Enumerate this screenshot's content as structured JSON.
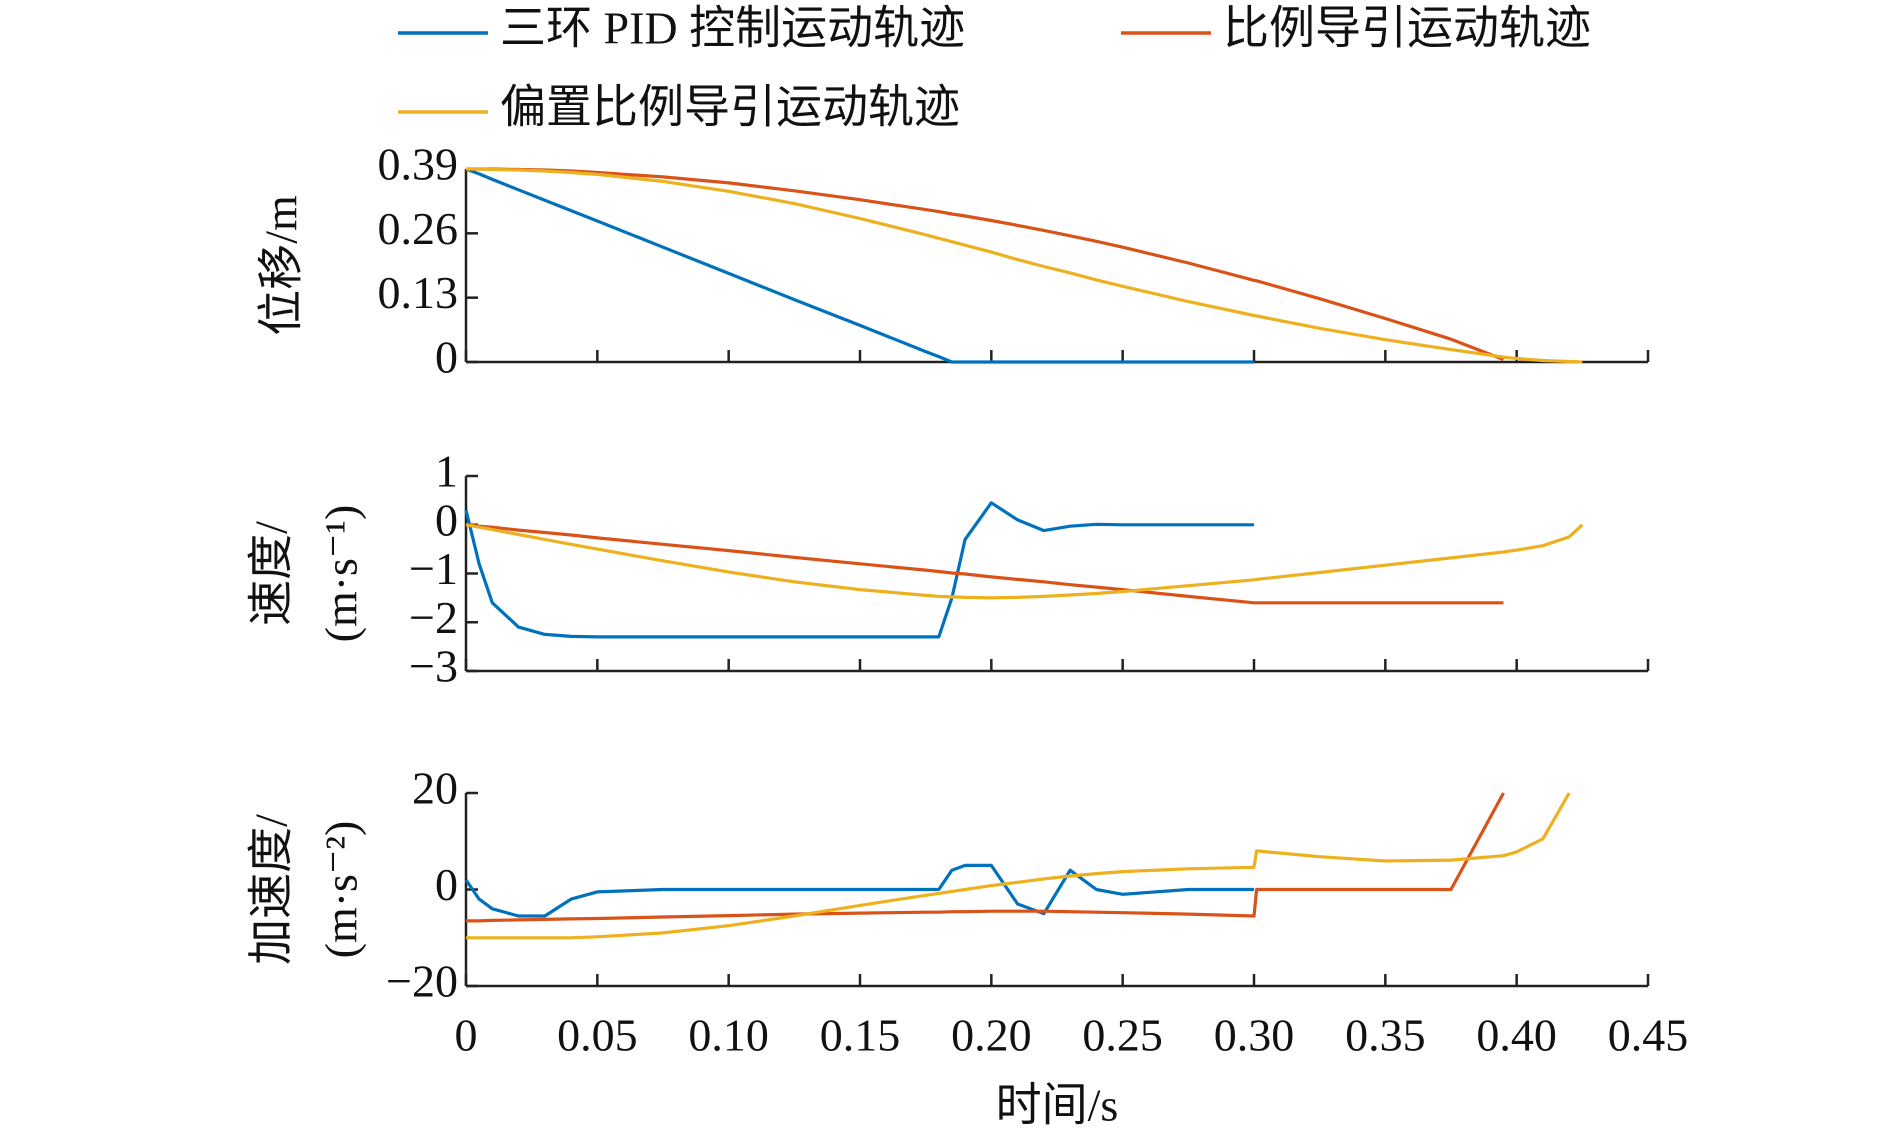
{
  "chart_data": [
    {
      "type": "line",
      "ylabel": "位移/m",
      "x": [
        0,
        0.005,
        0.01,
        0.02,
        0.03,
        0.04,
        0.05,
        0.075,
        0.1,
        0.125,
        0.15,
        0.175,
        0.18,
        0.185,
        0.19,
        0.2,
        0.21,
        0.22,
        0.23,
        0.24,
        0.25,
        0.275,
        0.3,
        0.301,
        0.325,
        0.35,
        0.375,
        0.395,
        0.4,
        0.41,
        0.42,
        0.425
      ],
      "xlim": [
        0,
        0.45
      ],
      "xticks": [
        0,
        0.05,
        0.1,
        0.15,
        0.2,
        0.25,
        0.3,
        0.35,
        0.4,
        0.45
      ],
      "ylim": [
        0,
        0.39
      ],
      "yticks": [
        0,
        0.13,
        0.26,
        0.39
      ],
      "series": [
        {
          "name": "三环 PID 控制运动轨迹",
          "color": "#0072bd",
          "values": [
            0.39,
            0.38,
            0.369,
            0.348,
            0.327,
            0.306,
            0.285,
            0.232,
            0.179,
            0.126,
            0.074,
            0.021,
            0.011,
            0,
            0,
            0,
            0,
            0,
            0,
            0,
            0,
            0,
            0,
            null,
            null,
            null,
            null,
            null,
            null,
            null,
            null,
            null
          ]
        },
        {
          "name": "比例导引运动轨迹",
          "color": "#d95319",
          "values": [
            0.39,
            0.39,
            0.39,
            0.389,
            0.388,
            0.386,
            0.383,
            0.374,
            0.362,
            0.346,
            0.328,
            0.308,
            0.304,
            0.299,
            0.295,
            0.286,
            0.276,
            0.266,
            0.255,
            0.244,
            0.232,
            0.2,
            0.165,
            0.164,
            0.128,
            0.088,
            0.046,
            0.005,
            null,
            null,
            null,
            null
          ]
        },
        {
          "name": "偏置比例导引运动轨迹",
          "color": "#edb120",
          "values": [
            0.39,
            0.39,
            0.389,
            0.388,
            0.386,
            0.383,
            0.379,
            0.365,
            0.345,
            0.32,
            0.29,
            0.257,
            0.25,
            0.243,
            0.236,
            0.222,
            0.207,
            0.193,
            0.18,
            0.166,
            0.153,
            0.122,
            0.094,
            0.093,
            0.068,
            0.045,
            0.025,
            0.01,
            0.007,
            0.003,
            0.001,
            0
          ]
        }
      ]
    },
    {
      "type": "line",
      "ylabel": [
        "速度/",
        "(m·s⁻¹)"
      ],
      "x": [
        0,
        0.005,
        0.01,
        0.02,
        0.03,
        0.04,
        0.05,
        0.075,
        0.1,
        0.125,
        0.15,
        0.175,
        0.18,
        0.185,
        0.19,
        0.2,
        0.21,
        0.22,
        0.23,
        0.24,
        0.25,
        0.275,
        0.3,
        0.301,
        0.325,
        0.35,
        0.375,
        0.395,
        0.4,
        0.41,
        0.42,
        0.425
      ],
      "xlim": [
        0,
        0.45
      ],
      "xticks": [
        0,
        0.05,
        0.1,
        0.15,
        0.2,
        0.25,
        0.3,
        0.35,
        0.4,
        0.45
      ],
      "ylim": [
        -3,
        1
      ],
      "yticks": [
        {
          "value": -3,
          "label": "−3"
        },
        {
          "value": -2,
          "label": "−2"
        },
        {
          "value": -1,
          "label": "−1"
        },
        0,
        1
      ],
      "series": [
        {
          "color": "#0072bd",
          "values": [
            0.3,
            -0.8,
            -1.6,
            -2.1,
            -2.25,
            -2.29,
            -2.3,
            -2.3,
            -2.3,
            -2.3,
            -2.3,
            -2.3,
            -2.3,
            -1.5,
            -0.3,
            0.45,
            0.1,
            -0.12,
            -0.03,
            0.01,
            0,
            0,
            0,
            null,
            null,
            null,
            null,
            null,
            null,
            null,
            null,
            null
          ]
        },
        {
          "color": "#d95319",
          "values": [
            0,
            -0.03,
            -0.05,
            -0.11,
            -0.16,
            -0.21,
            -0.27,
            -0.4,
            -0.53,
            -0.67,
            -0.8,
            -0.93,
            -0.96,
            -0.99,
            -1.01,
            -1.07,
            -1.12,
            -1.17,
            -1.23,
            -1.28,
            -1.33,
            -1.47,
            -1.6,
            -1.6,
            -1.6,
            -1.6,
            -1.6,
            -1.6,
            null,
            null,
            null,
            null
          ]
        },
        {
          "color": "#edb120",
          "values": [
            0,
            -0.05,
            -0.1,
            -0.2,
            -0.3,
            -0.4,
            -0.5,
            -0.74,
            -0.97,
            -1.17,
            -1.33,
            -1.45,
            -1.47,
            -1.48,
            -1.49,
            -1.5,
            -1.49,
            -1.47,
            -1.44,
            -1.41,
            -1.37,
            -1.25,
            -1.13,
            -1.12,
            -0.98,
            -0.83,
            -0.68,
            -0.56,
            -0.52,
            -0.43,
            -0.25,
            0
          ]
        }
      ]
    },
    {
      "type": "line",
      "ylabel": [
        "加速度/",
        "(m·s⁻²)"
      ],
      "xlabel": "时间/s",
      "x": [
        0,
        0.005,
        0.01,
        0.02,
        0.03,
        0.04,
        0.05,
        0.075,
        0.1,
        0.125,
        0.15,
        0.175,
        0.18,
        0.185,
        0.19,
        0.2,
        0.21,
        0.22,
        0.23,
        0.24,
        0.25,
        0.275,
        0.3,
        0.301,
        0.325,
        0.35,
        0.375,
        0.395,
        0.4,
        0.41,
        0.42,
        0.425
      ],
      "xlim": [
        0,
        0.45
      ],
      "xticks": [
        0,
        0.05,
        {
          "value": 0.1,
          "label": "0.10"
        },
        0.15,
        {
          "value": 0.2,
          "label": "0.20"
        },
        0.25,
        {
          "value": 0.3,
          "label": "0.30"
        },
        0.35,
        {
          "value": 0.4,
          "label": "0.40"
        },
        0.45
      ],
      "ylim": [
        -20,
        20
      ],
      "yticks": [
        {
          "value": -20,
          "label": "−20"
        },
        0,
        20
      ],
      "series": [
        {
          "color": "#0072bd",
          "values": [
            2,
            -2,
            -4,
            -5.5,
            -5.5,
            -2,
            -0.5,
            0,
            0,
            0,
            0,
            0,
            0,
            4,
            5,
            5,
            -3,
            -5,
            4,
            0,
            -1,
            0,
            0,
            null,
            null,
            null,
            null,
            null,
            null,
            null,
            null,
            null
          ]
        },
        {
          "color": "#d95319",
          "values": [
            -6.5,
            -6.5,
            -6.4,
            -6.3,
            -6.2,
            -6.1,
            -6,
            -5.7,
            -5.4,
            -5.1,
            -4.9,
            -4.7,
            -4.7,
            -4.6,
            -4.6,
            -4.5,
            -4.5,
            -4.5,
            -4.6,
            -4.7,
            -4.8,
            -5.1,
            -5.5,
            0,
            0,
            0,
            0,
            20,
            null,
            null,
            null,
            null
          ]
        },
        {
          "color": "#edb120",
          "values": [
            -10,
            -10,
            -10,
            -10,
            -10,
            -10,
            -9.8,
            -9,
            -7.5,
            -5.5,
            -3.3,
            -1.2,
            -0.8,
            -0.4,
            0,
            0.8,
            1.5,
            2.2,
            2.8,
            3.3,
            3.7,
            4.3,
            4.6,
            8,
            6.8,
            5.9,
            6.1,
            7,
            7.8,
            10.5,
            20,
            null
          ]
        }
      ]
    }
  ]
}
